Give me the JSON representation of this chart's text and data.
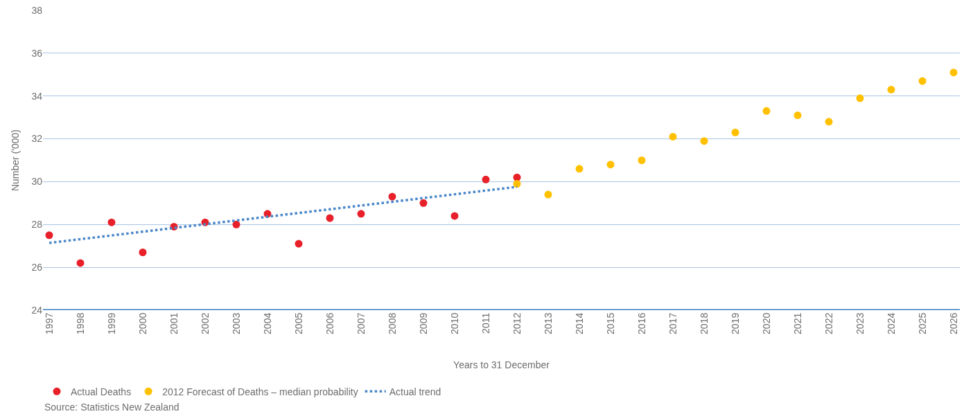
{
  "chart_data": {
    "type": "scatter",
    "xlabel": "Years to 31 December",
    "ylabel": "Number ('000)",
    "xlim": [
      1996.8,
      2026.2
    ],
    "xticks": [
      1997,
      1998,
      1999,
      2000,
      2001,
      2002,
      2003,
      2004,
      2005,
      2006,
      2007,
      2008,
      2009,
      2010,
      2011,
      2012,
      2013,
      2014,
      2015,
      2016,
      2017,
      2018,
      2019,
      2020,
      2021,
      2022,
      2023,
      2024,
      2025,
      2026
    ],
    "ylim": [
      24,
      38
    ],
    "yticks": [
      24,
      26,
      28,
      30,
      32,
      34,
      36,
      38
    ],
    "grid": "y",
    "legend": "bottom left",
    "series": [
      {
        "name": "Actual Deaths",
        "color": "#e8202a",
        "marker": "circle",
        "x": [
          1997,
          1998,
          1999,
          2000,
          2001,
          2002,
          2003,
          2004,
          2005,
          2006,
          2007,
          2008,
          2009,
          2010,
          2011,
          2012
        ],
        "values": [
          27.5,
          26.2,
          28.1,
          26.7,
          27.9,
          28.1,
          28.0,
          28.5,
          27.1,
          28.3,
          28.5,
          29.3,
          29.0,
          28.4,
          30.1,
          30.2
        ]
      },
      {
        "name": "2012 Forecast of Deaths – median probability",
        "color": "#ffc000",
        "marker": "circle",
        "x": [
          2012,
          2013,
          2014,
          2015,
          2016,
          2017,
          2018,
          2019,
          2020,
          2021,
          2022,
          2023,
          2024,
          2025,
          2026
        ],
        "values": [
          29.9,
          29.4,
          30.6,
          30.8,
          31.0,
          32.1,
          31.9,
          32.3,
          33.3,
          33.1,
          32.8,
          33.9,
          34.3,
          34.7,
          35.1
        ]
      },
      {
        "name": "Actual trend",
        "type": "line",
        "color": "#4a86c8",
        "line_style": "dotted",
        "marker": "none",
        "x": [
          1997,
          2012
        ],
        "values": [
          27.14,
          29.76
        ]
      }
    ],
    "annotations": [
      "Source: Statistics New Zealand"
    ]
  }
}
